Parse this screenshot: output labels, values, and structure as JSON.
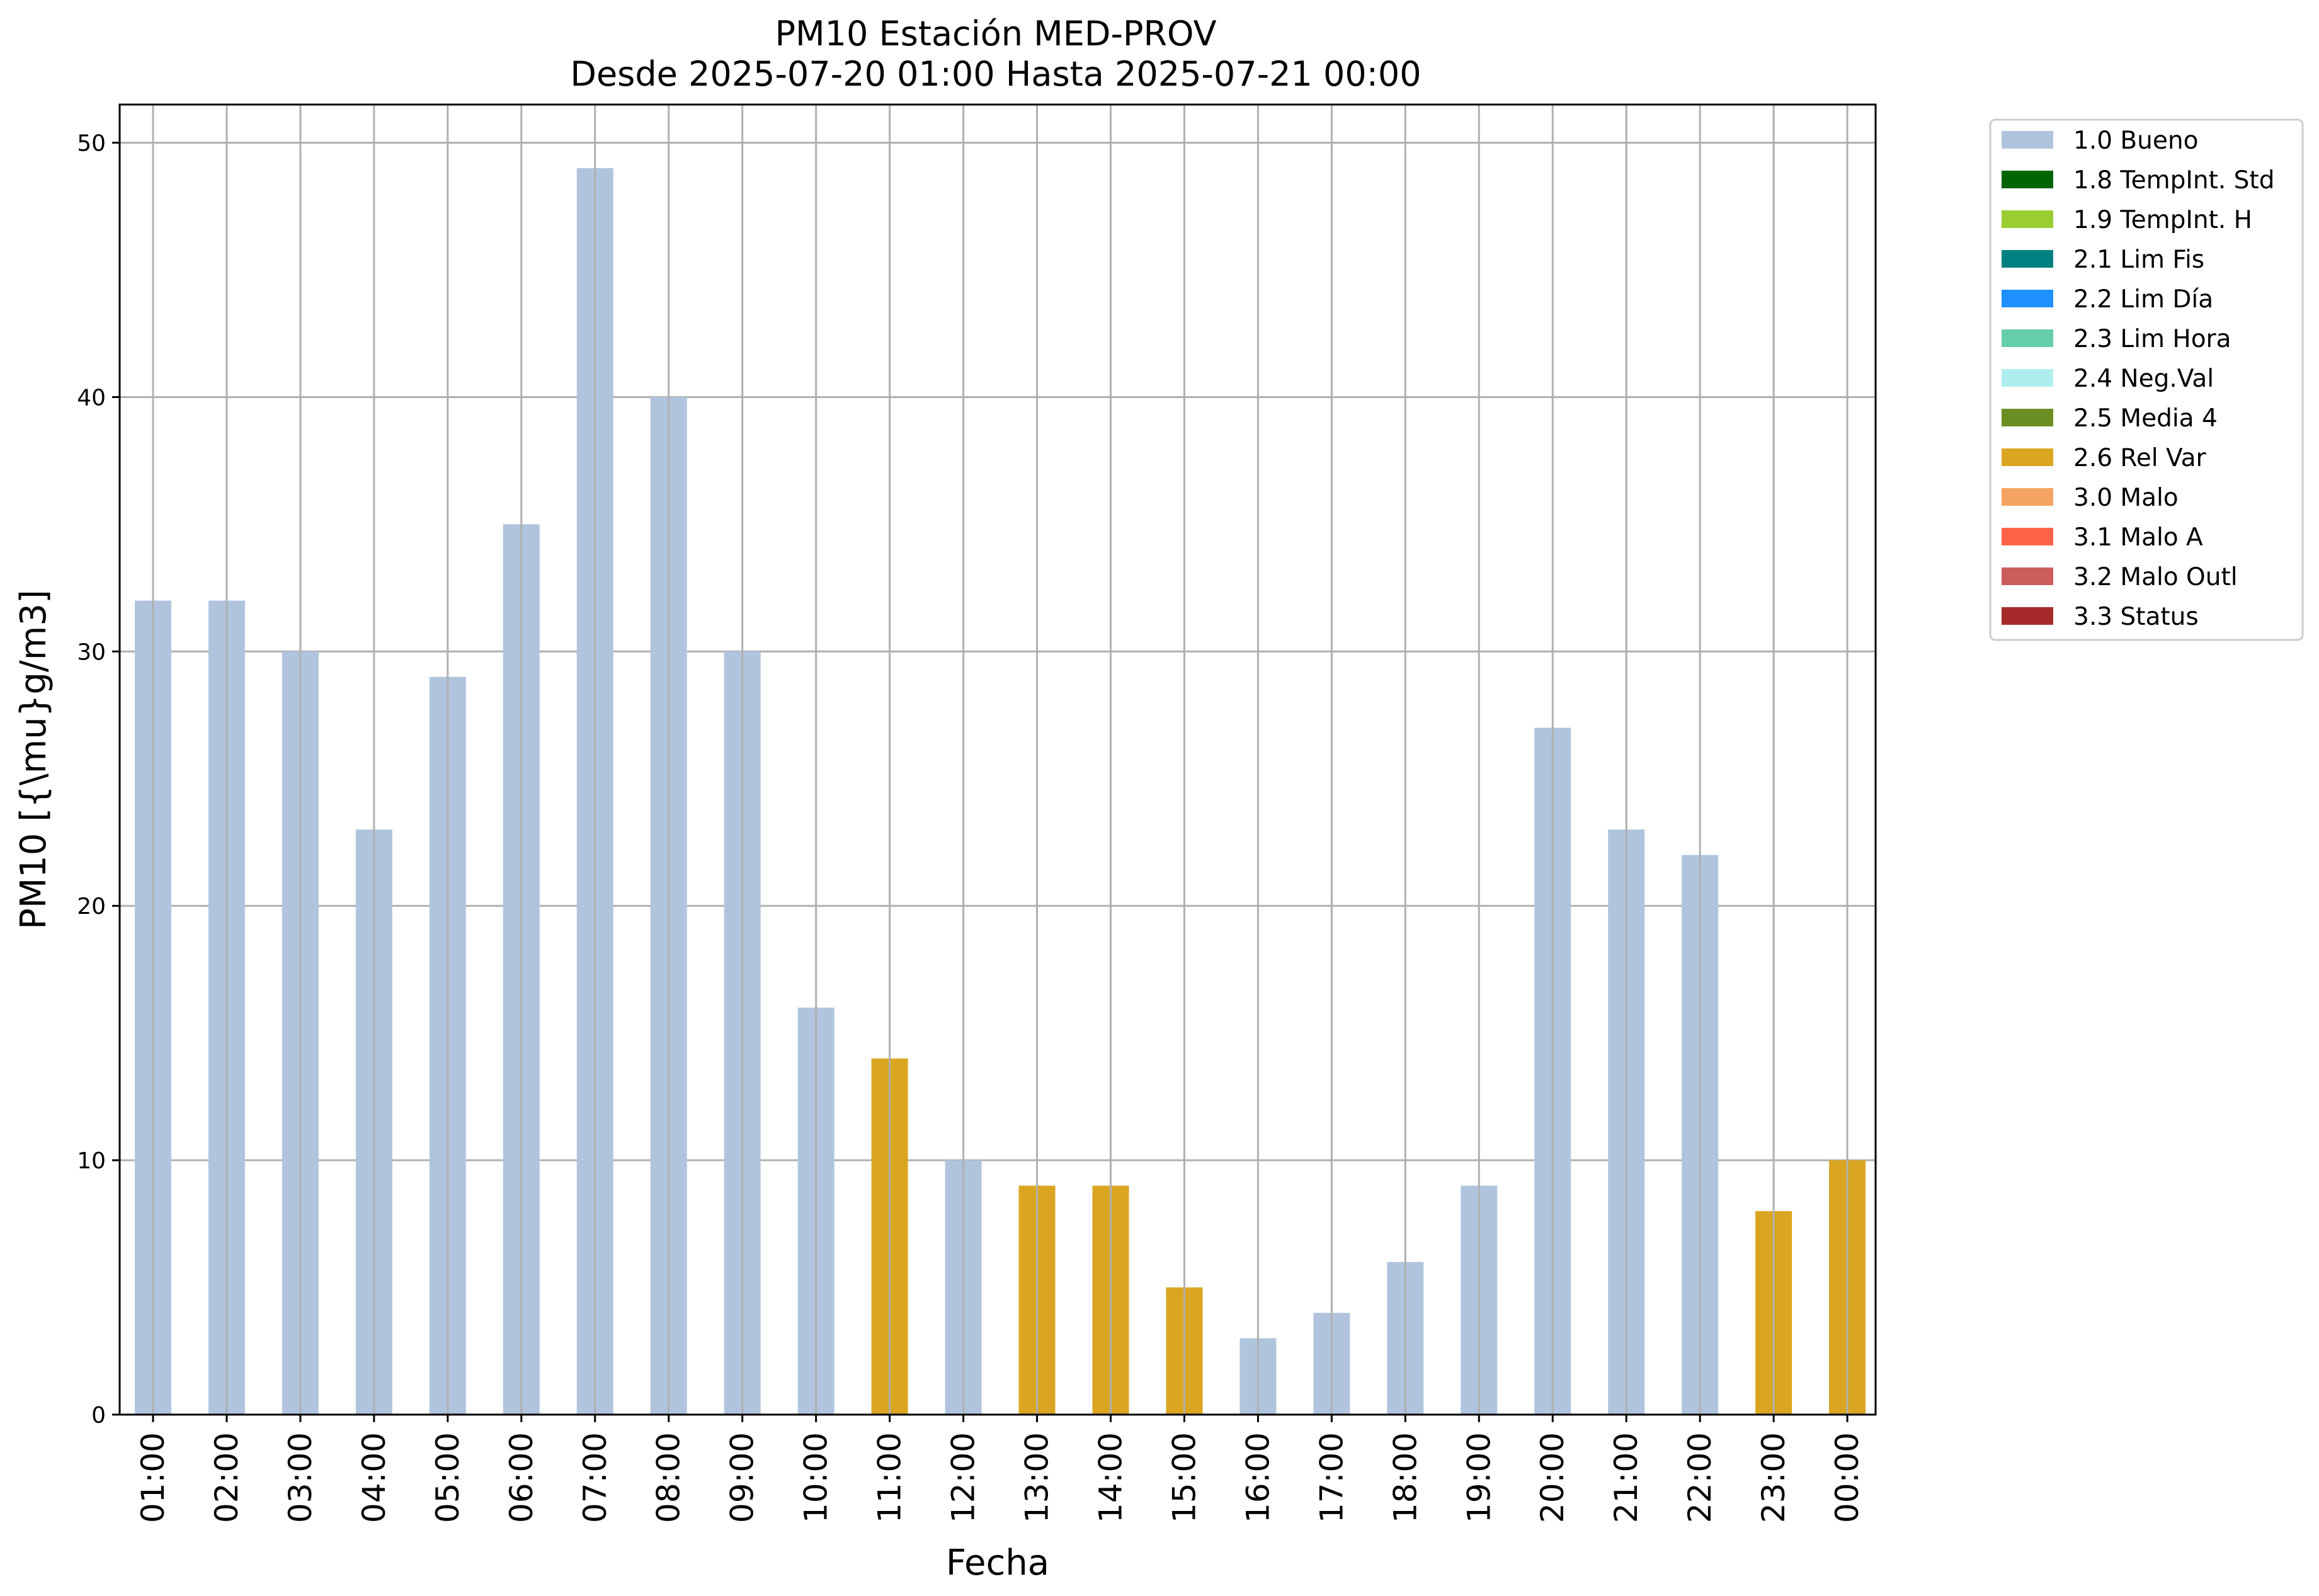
{
  "chart_data": {
    "type": "bar",
    "title": "PM10 Estación MED-PROV",
    "subtitle": "Desde 2025-07-20 01:00 Hasta 2025-07-21 00:00",
    "xlabel": "Fecha",
    "ylabel": "PM10 [{\\mu}g/m3]",
    "ylim": [
      0,
      51.5
    ],
    "yticks": [
      0,
      10,
      20,
      30,
      40,
      50
    ],
    "grid": true,
    "legend_position": "outside-right",
    "categories": [
      "01:00",
      "02:00",
      "03:00",
      "04:00",
      "05:00",
      "06:00",
      "07:00",
      "08:00",
      "09:00",
      "10:00",
      "11:00",
      "12:00",
      "13:00",
      "14:00",
      "15:00",
      "16:00",
      "17:00",
      "18:00",
      "19:00",
      "20:00",
      "21:00",
      "22:00",
      "23:00",
      "00:00"
    ],
    "values": [
      32,
      32,
      30,
      23,
      29,
      35,
      49,
      40,
      30,
      16,
      14,
      10,
      9,
      9,
      5,
      3,
      4,
      6,
      9,
      27,
      23,
      22,
      8,
      10
    ],
    "flags": [
      "1.0 Bueno",
      "1.0 Bueno",
      "1.0 Bueno",
      "1.0 Bueno",
      "1.0 Bueno",
      "1.0 Bueno",
      "1.0 Bueno",
      "1.0 Bueno",
      "1.0 Bueno",
      "1.0 Bueno",
      "2.6 Rel Var",
      "1.0 Bueno",
      "2.6 Rel Var",
      "2.6 Rel Var",
      "2.6 Rel Var",
      "1.0 Bueno",
      "1.0 Bueno",
      "1.0 Bueno",
      "1.0 Bueno",
      "1.0 Bueno",
      "1.0 Bueno",
      "1.0 Bueno",
      "2.6 Rel Var",
      "2.6 Rel Var"
    ],
    "legend": [
      {
        "label": "1.0 Bueno",
        "color": "#b0c4de"
      },
      {
        "label": "1.8 TempInt. Std",
        "color": "#006400"
      },
      {
        "label": "1.9 TempInt. H",
        "color": "#9acd32"
      },
      {
        "label": "2.1 Lim Fis",
        "color": "#008080"
      },
      {
        "label": "2.2 Lim Día",
        "color": "#1e90ff"
      },
      {
        "label": "2.3 Lim Hora",
        "color": "#66cdaa"
      },
      {
        "label": "2.4 Neg.Val",
        "color": "#afeeee"
      },
      {
        "label": "2.5 Media 4",
        "color": "#6b8e23"
      },
      {
        "label": "2.6 Rel Var",
        "color": "#daa520"
      },
      {
        "label": "3.0 Malo",
        "color": "#f4a460"
      },
      {
        "label": "3.1 Malo A",
        "color": "#ff6347"
      },
      {
        "label": "3.2 Malo Outl",
        "color": "#cd5c5c"
      },
      {
        "label": "3.3 Status",
        "color": "#a52a2a"
      }
    ]
  }
}
